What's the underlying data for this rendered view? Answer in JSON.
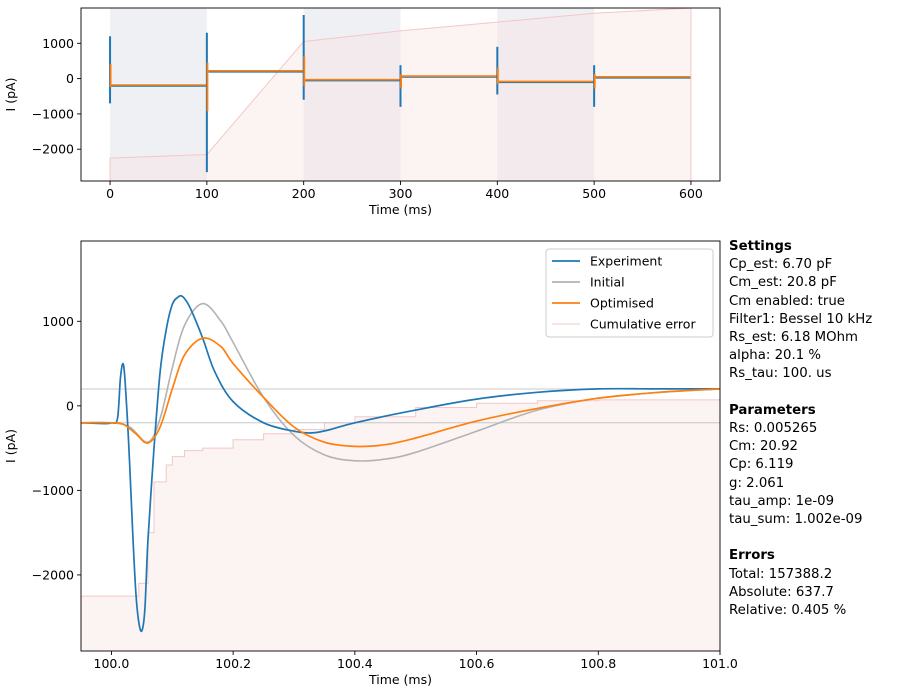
{
  "chart_data": [
    {
      "type": "line",
      "xlabel": "Time (ms)",
      "ylabel": "I (pA)",
      "xlim": [
        -30,
        630
      ],
      "ylim": [
        -2900,
        2000
      ],
      "xticks": [
        0,
        100,
        200,
        300,
        400,
        500,
        600
      ],
      "yticks": [
        -2000,
        -1000,
        0,
        1000
      ],
      "shaded_segments": [
        {
          "x": [
            0,
            100
          ],
          "shade": "grey"
        },
        {
          "x": [
            200,
            300
          ],
          "shade": "grey"
        },
        {
          "x": [
            400,
            500
          ],
          "shade": "grey"
        }
      ],
      "step_levels": [
        -200,
        200,
        -50,
        50,
        -100,
        30
      ],
      "step_edges": [
        0,
        100,
        200,
        300,
        400,
        500,
        600
      ],
      "transient_peaks": [
        {
          "x": 0,
          "up": 1200,
          "down": -700
        },
        {
          "x": 100,
          "up": 1300,
          "down": -2650
        },
        {
          "x": 200,
          "up": 1800,
          "down": -600
        },
        {
          "x": 300,
          "up": 380,
          "down": -800
        },
        {
          "x": 400,
          "up": 900,
          "down": -450
        },
        {
          "x": 500,
          "up": 380,
          "down": -800
        }
      ],
      "series": [
        {
          "name": "Experiment",
          "color": "#1f77b4"
        },
        {
          "name": "Optimised",
          "color": "#ff7f0e"
        },
        {
          "name": "Cumulative error",
          "color": "#f4c7c7",
          "x": [
            0,
            100,
            200,
            300,
            400,
            500,
            600
          ],
          "y": [
            -2250,
            -2150,
            1050,
            1350,
            1600,
            1850,
            2000
          ]
        }
      ]
    },
    {
      "type": "line",
      "xlabel": "Time (ms)",
      "ylabel": "I (pA)",
      "xlim": [
        99.95,
        101.0
      ],
      "ylim": [
        -2900,
        1950
      ],
      "xticks": [
        100.0,
        100.2,
        100.4,
        100.6,
        100.8,
        101.0
      ],
      "yticks": [
        -2000,
        -1000,
        0,
        1000
      ],
      "hlines": [
        200,
        -200
      ],
      "legend_location": "top-right",
      "series": [
        {
          "name": "Experiment",
          "color": "#1f77b4",
          "x": [
            99.95,
            99.99,
            100.0,
            100.01,
            100.015,
            100.02,
            100.025,
            100.03,
            100.035,
            100.04,
            100.045,
            100.05,
            100.055,
            100.06,
            100.07,
            100.08,
            100.09,
            100.1,
            100.11,
            100.115,
            100.12,
            100.13,
            100.15,
            100.17,
            100.2,
            100.25,
            100.3,
            100.33,
            100.36,
            100.4,
            100.5,
            100.6,
            100.7,
            100.8,
            100.9,
            101.0
          ],
          "y": [
            -200,
            -210,
            -200,
            -150,
            350,
            480,
            0,
            -700,
            -1500,
            -2200,
            -2560,
            -2660,
            -2400,
            -1600,
            -500,
            400,
            900,
            1200,
            1290,
            1300,
            1270,
            1150,
            800,
            400,
            50,
            -200,
            -300,
            -320,
            -280,
            -200,
            -50,
            80,
            160,
            200,
            200,
            200
          ]
        },
        {
          "name": "Initial",
          "color": "#b3b3b3",
          "x": [
            99.95,
            100.0,
            100.03,
            100.06,
            100.08,
            100.1,
            100.12,
            100.15,
            100.18,
            100.2,
            100.25,
            100.3,
            100.35,
            100.4,
            100.45,
            100.5,
            100.6,
            100.7,
            100.8,
            100.9,
            101.0
          ],
          "y": [
            -200,
            -200,
            -250,
            -430,
            -150,
            450,
            950,
            1210,
            1000,
            750,
            100,
            -350,
            -580,
            -650,
            -630,
            -550,
            -300,
            -50,
            90,
            160,
            200
          ]
        },
        {
          "name": "Optimised",
          "color": "#ff7f0e",
          "x": [
            99.95,
            100.0,
            100.02,
            100.04,
            100.06,
            100.08,
            100.1,
            100.12,
            100.15,
            100.18,
            100.2,
            100.25,
            100.3,
            100.35,
            100.4,
            100.45,
            100.5,
            100.6,
            100.7,
            100.8,
            100.9,
            101.0
          ],
          "y": [
            -200,
            -200,
            -220,
            -330,
            -440,
            -250,
            200,
            600,
            800,
            700,
            500,
            100,
            -250,
            -430,
            -480,
            -460,
            -380,
            -180,
            -30,
            90,
            160,
            200
          ]
        },
        {
          "name": "Cumulative error",
          "color": "#f4c7c7",
          "x": [
            99.95,
            100.03,
            100.045,
            100.06,
            100.07,
            100.09,
            100.1,
            100.12,
            100.15,
            100.2,
            100.25,
            100.3,
            100.35,
            100.4,
            100.5,
            100.6,
            100.7,
            100.8,
            101.0
          ],
          "y": [
            -2250,
            -2250,
            -2100,
            -1500,
            -900,
            -700,
            -600,
            -530,
            -500,
            -400,
            -330,
            -280,
            -200,
            -130,
            -20,
            30,
            60,
            70,
            70
          ]
        }
      ]
    }
  ],
  "sidebar": {
    "settings_title": "Settings",
    "settings": [
      "Cp_est: 6.70 pF",
      "Cm_est: 20.8 pF",
      "Cm enabled: true",
      "Filter1: Bessel 10 kHz",
      "Rs_est: 6.18 MOhm",
      "alpha: 20.1 %",
      "Rs_tau: 100. us"
    ],
    "parameters_title": "Parameters",
    "parameters": [
      "Rs: 0.005265",
      "Cm: 20.92",
      "Cp: 6.119",
      "g: 2.061",
      "tau_amp: 1e-09",
      "tau_sum: 1.002e-09"
    ],
    "errors_title": "Errors",
    "errors": [
      "Total: 157388.2",
      "Absolute: 637.7",
      "Relative: 0.405 %"
    ]
  }
}
